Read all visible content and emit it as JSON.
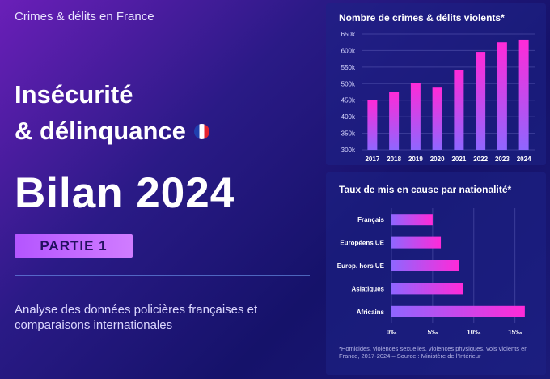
{
  "header": {
    "eyebrow": "Crimes & délits en France",
    "title_line1": "Insécurité",
    "title_line2": "& délinquance",
    "bilan": "Bilan 2024",
    "partie": "PARTIE 1",
    "description": "Analyse des données policières françaises et comparaisons internationales"
  },
  "colors": {
    "accent": "#c66bff",
    "bar_top": "#ff2ad8",
    "bar_bottom": "#8f66ff",
    "flag_blue": "#1f3fae",
    "flag_red": "#e3222e"
  },
  "chart_data": [
    {
      "type": "bar",
      "title": "Nombre de crimes & délits violents*",
      "categories": [
        "2017",
        "2018",
        "2019",
        "2020",
        "2021",
        "2022",
        "2023",
        "2024"
      ],
      "values": [
        450,
        475,
        503,
        488,
        542,
        596,
        625,
        633
      ],
      "y_tick_labels": [
        "300k",
        "350k",
        "400k",
        "450k",
        "500k",
        "550k",
        "600k",
        "650k"
      ],
      "y_ticks": [
        300,
        350,
        400,
        450,
        500,
        550,
        600,
        650
      ],
      "ylim": [
        300,
        650
      ],
      "grid": true
    },
    {
      "type": "bar",
      "orientation": "horizontal",
      "title": "Taux de mis en cause par nationalité*",
      "categories": [
        "Français",
        "Européens UE",
        "Europ. hors UE",
        "Asiatiques",
        "Africains"
      ],
      "values": [
        5.0,
        6.0,
        8.2,
        8.7,
        16.2
      ],
      "x_tick_labels": [
        "0‰",
        "5‰",
        "10‰",
        "15‰"
      ],
      "x_ticks": [
        0,
        5,
        10,
        15
      ],
      "xlim": [
        0,
        17
      ],
      "grid": true,
      "footnote": "*Homicides, violences sexuelles, violences physiques, vols violents en France, 2017-2024 – Source : Ministère de l’Intérieur"
    }
  ]
}
